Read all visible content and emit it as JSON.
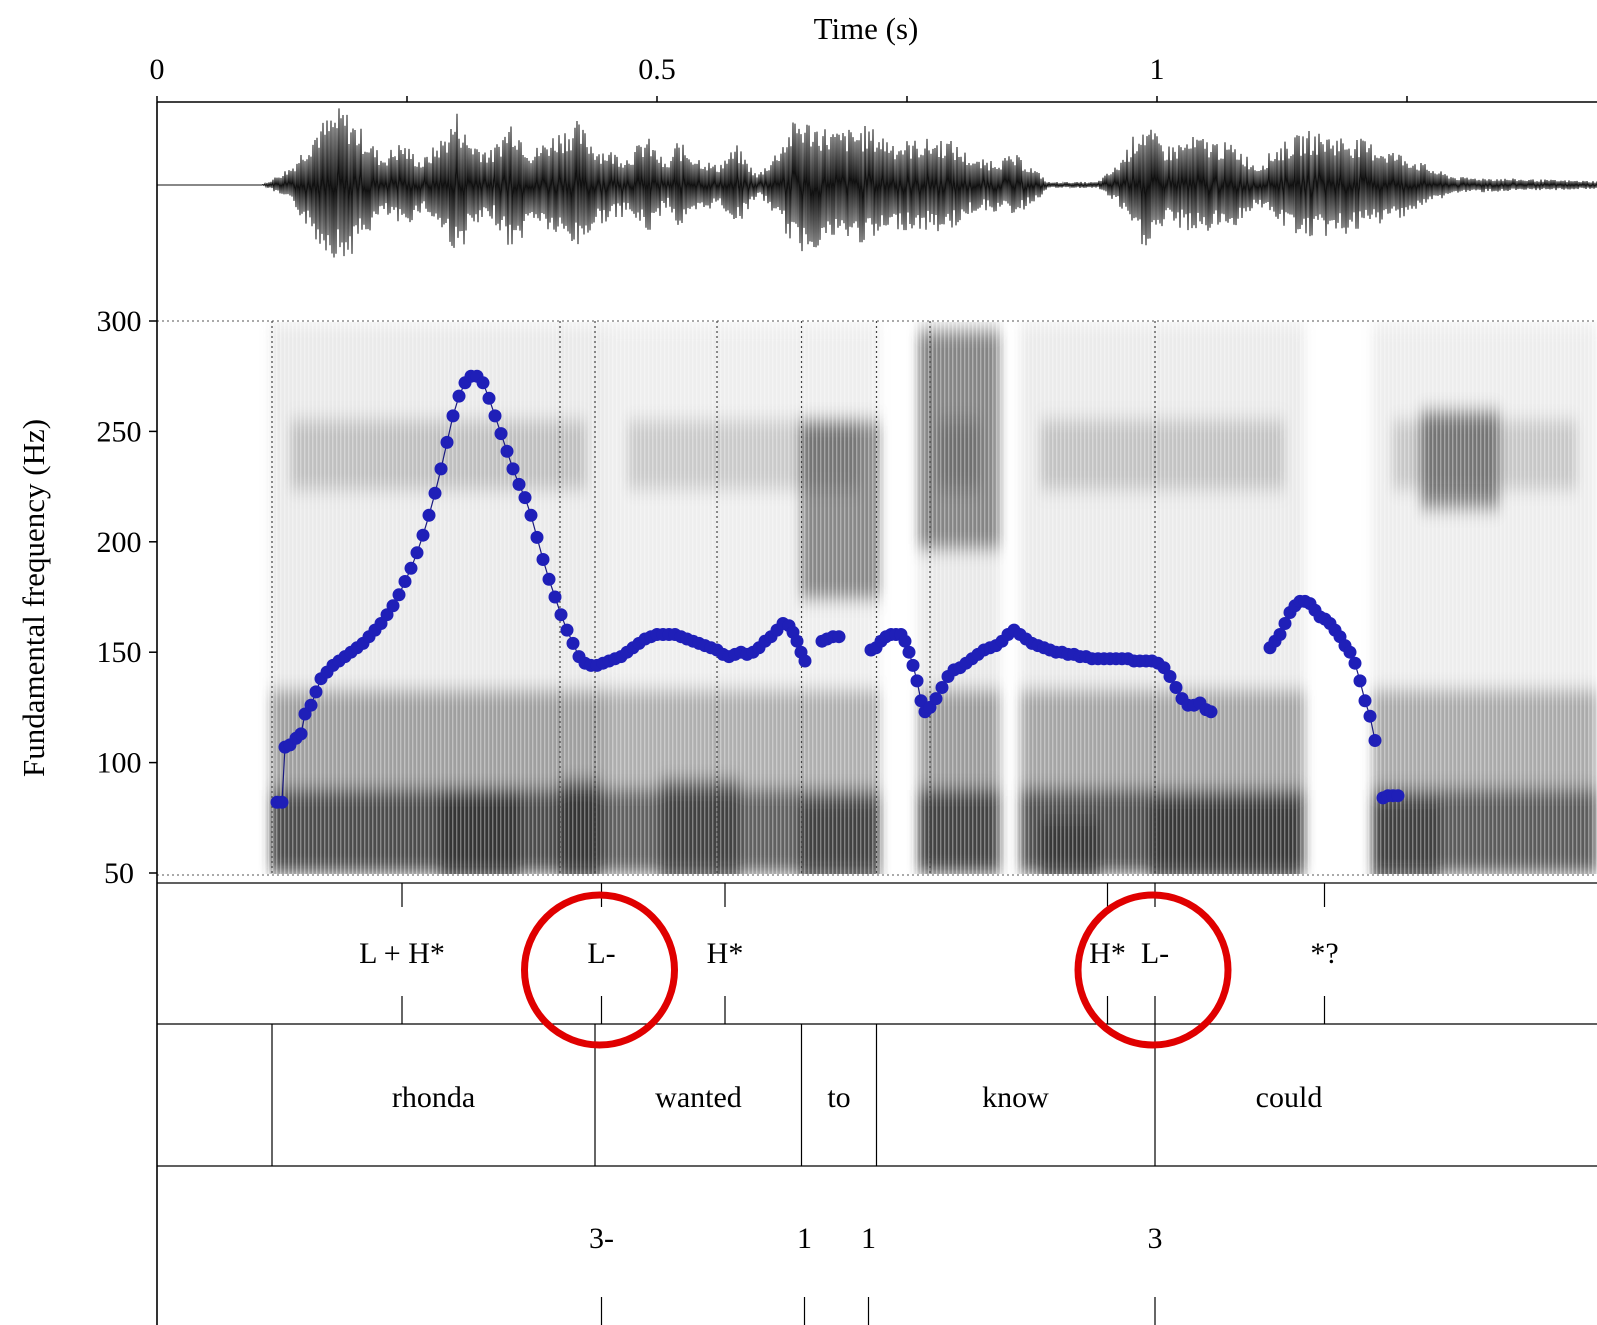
{
  "chart_data": {
    "type": "scatter",
    "title": "",
    "xlabel": "Time (s)",
    "ylabel": "Fundamental frequency (Hz)",
    "xlim": [
      0,
      1.415
    ],
    "ylim": [
      50,
      300
    ],
    "x_ticks": [
      {
        "value": 0,
        "label": "0"
      },
      {
        "value": 0.5,
        "label": "0.5"
      },
      {
        "value": 1,
        "label": "1"
      }
    ],
    "x_minor_ticks": [
      0.25,
      0.75,
      1.25
    ],
    "y_ticks": [
      {
        "value": 50,
        "label": "50"
      },
      {
        "value": 100,
        "label": "100"
      },
      {
        "value": 150,
        "label": "150"
      },
      {
        "value": 200,
        "label": "200"
      },
      {
        "value": 250,
        "label": "250"
      },
      {
        "value": 300,
        "label": "300"
      }
    ],
    "colors": {
      "pitch": "#1f1fb8",
      "annotation_circle": "#e00000",
      "spectrogram": "#3a3a3a"
    },
    "pitch_segments": [
      [
        [
          0.12,
          82
        ],
        [
          0.125,
          82
        ],
        [
          0.128,
          107
        ],
        [
          0.133,
          108
        ],
        [
          0.139,
          111
        ],
        [
          0.144,
          113
        ],
        [
          0.148,
          122
        ],
        [
          0.154,
          126
        ],
        [
          0.159,
          132
        ],
        [
          0.164,
          138
        ],
        [
          0.17,
          141
        ],
        [
          0.176,
          144
        ],
        [
          0.182,
          146
        ],
        [
          0.188,
          148
        ],
        [
          0.194,
          150
        ],
        [
          0.2,
          152
        ],
        [
          0.206,
          154
        ],
        [
          0.212,
          157
        ],
        [
          0.218,
          160
        ],
        [
          0.224,
          163
        ],
        [
          0.23,
          167
        ],
        [
          0.236,
          171
        ],
        [
          0.242,
          176
        ],
        [
          0.248,
          182
        ],
        [
          0.254,
          188
        ],
        [
          0.26,
          195
        ],
        [
          0.266,
          203
        ],
        [
          0.272,
          212
        ],
        [
          0.278,
          222
        ],
        [
          0.284,
          233
        ],
        [
          0.29,
          245
        ],
        [
          0.296,
          257
        ],
        [
          0.302,
          266
        ],
        [
          0.308,
          272
        ],
        [
          0.314,
          275
        ],
        [
          0.32,
          275
        ],
        [
          0.326,
          272
        ],
        [
          0.332,
          265
        ],
        [
          0.338,
          257
        ],
        [
          0.344,
          249
        ],
        [
          0.35,
          241
        ],
        [
          0.356,
          233
        ],
        [
          0.362,
          226
        ],
        [
          0.368,
          220
        ],
        [
          0.374,
          212
        ],
        [
          0.38,
          202
        ],
        [
          0.386,
          192
        ],
        [
          0.392,
          183
        ],
        [
          0.398,
          175
        ],
        [
          0.404,
          167
        ],
        [
          0.41,
          160
        ],
        [
          0.416,
          154
        ],
        [
          0.422,
          148
        ],
        [
          0.428,
          145
        ],
        [
          0.434,
          144
        ],
        [
          0.44,
          144
        ],
        [
          0.446,
          145
        ],
        [
          0.452,
          146
        ],
        [
          0.458,
          147
        ],
        [
          0.464,
          148
        ],
        [
          0.47,
          150
        ],
        [
          0.476,
          152
        ],
        [
          0.482,
          154
        ],
        [
          0.488,
          156
        ],
        [
          0.494,
          157
        ],
        [
          0.5,
          158
        ],
        [
          0.506,
          158
        ],
        [
          0.512,
          158
        ],
        [
          0.518,
          158
        ],
        [
          0.524,
          157
        ],
        [
          0.53,
          156
        ],
        [
          0.536,
          155
        ],
        [
          0.542,
          154
        ],
        [
          0.548,
          153
        ],
        [
          0.554,
          152
        ],
        [
          0.56,
          151
        ],
        [
          0.566,
          149
        ],
        [
          0.572,
          148
        ],
        [
          0.578,
          149
        ],
        [
          0.584,
          150
        ],
        [
          0.59,
          149
        ],
        [
          0.596,
          150
        ],
        [
          0.602,
          152
        ],
        [
          0.608,
          155
        ],
        [
          0.614,
          157
        ],
        [
          0.62,
          160
        ],
        [
          0.626,
          163
        ],
        [
          0.632,
          162
        ],
        [
          0.636,
          159
        ],
        [
          0.64,
          155
        ],
        [
          0.644,
          150
        ],
        [
          0.648,
          146
        ]
      ],
      [
        [
          0.665,
          155
        ],
        [
          0.67,
          156
        ],
        [
          0.676,
          157
        ],
        [
          0.682,
          157
        ]
      ],
      [
        [
          0.714,
          151
        ],
        [
          0.719,
          152
        ],
        [
          0.724,
          155
        ],
        [
          0.729,
          157
        ],
        [
          0.734,
          158
        ],
        [
          0.739,
          158
        ],
        [
          0.744,
          158
        ],
        [
          0.748,
          155
        ],
        [
          0.752,
          150
        ],
        [
          0.756,
          144
        ],
        [
          0.76,
          137
        ],
        [
          0.764,
          128
        ],
        [
          0.768,
          123
        ],
        [
          0.773,
          125
        ],
        [
          0.779,
          129
        ],
        [
          0.785,
          134
        ],
        [
          0.791,
          139
        ],
        [
          0.797,
          142
        ],
        [
          0.803,
          143
        ],
        [
          0.809,
          145
        ],
        [
          0.815,
          147
        ],
        [
          0.821,
          149
        ],
        [
          0.827,
          151
        ],
        [
          0.833,
          152
        ],
        [
          0.839,
          153
        ],
        [
          0.845,
          155
        ],
        [
          0.851,
          158
        ],
        [
          0.857,
          160
        ],
        [
          0.863,
          158
        ],
        [
          0.869,
          156
        ],
        [
          0.875,
          154
        ],
        [
          0.881,
          153
        ],
        [
          0.887,
          152
        ],
        [
          0.893,
          151
        ],
        [
          0.899,
          150
        ],
        [
          0.905,
          150
        ],
        [
          0.911,
          149
        ],
        [
          0.917,
          149
        ],
        [
          0.923,
          148
        ],
        [
          0.929,
          148
        ],
        [
          0.935,
          147
        ],
        [
          0.941,
          147
        ],
        [
          0.947,
          147
        ],
        [
          0.953,
          147
        ],
        [
          0.959,
          147
        ],
        [
          0.965,
          147
        ],
        [
          0.971,
          147
        ],
        [
          0.977,
          146
        ],
        [
          0.983,
          146
        ],
        [
          0.989,
          146
        ],
        [
          0.995,
          146
        ],
        [
          1.001,
          145
        ],
        [
          1.007,
          143
        ],
        [
          1.013,
          139
        ],
        [
          1.019,
          134
        ],
        [
          1.025,
          129
        ],
        [
          1.031,
          126
        ],
        [
          1.037,
          126
        ],
        [
          1.043,
          127
        ],
        [
          1.049,
          124
        ],
        [
          1.054,
          123
        ]
      ],
      [
        [
          1.113,
          152
        ],
        [
          1.118,
          155
        ],
        [
          1.123,
          158
        ],
        [
          1.128,
          163
        ],
        [
          1.133,
          168
        ],
        [
          1.138,
          171
        ],
        [
          1.143,
          173
        ],
        [
          1.148,
          173
        ],
        [
          1.153,
          172
        ],
        [
          1.158,
          169
        ],
        [
          1.163,
          166
        ],
        [
          1.168,
          165
        ],
        [
          1.173,
          163
        ],
        [
          1.178,
          160
        ],
        [
          1.183,
          157
        ],
        [
          1.188,
          153
        ],
        [
          1.193,
          150
        ],
        [
          1.198,
          145
        ],
        [
          1.203,
          137
        ],
        [
          1.208,
          128
        ],
        [
          1.213,
          121
        ],
        [
          1.218,
          110
        ]
      ],
      [
        [
          1.226,
          84
        ],
        [
          1.231,
          85
        ],
        [
          1.236,
          85
        ],
        [
          1.241,
          85
        ]
      ]
    ],
    "word_boundaries": [
      0.115,
      0.438,
      0.6445,
      0.7195,
      0.998
    ],
    "words": [
      {
        "label": "rhonda",
        "x": 0.2765
      },
      {
        "label": "wanted",
        "x": 0.5415
      },
      {
        "label": "to",
        "x": 0.682
      },
      {
        "label": "know",
        "x": 0.8585
      },
      {
        "label": "could",
        "x": 1.132
      }
    ],
    "tones": [
      {
        "label": "L + H*",
        "x": 0.245
      },
      {
        "label": "L-",
        "x": 0.4445
      },
      {
        "label": "H*",
        "x": 0.568
      },
      {
        "label": "H*",
        "x": 0.9505
      },
      {
        "label": "L-",
        "x": 0.998
      },
      {
        "label": "*?",
        "x": 1.1675
      }
    ],
    "break_indices": [
      {
        "label": "3-",
        "x": 0.4445
      },
      {
        "label": "1",
        "x": 0.6475
      },
      {
        "label": "1",
        "x": 0.7115
      },
      {
        "label": "3",
        "x": 0.998
      }
    ],
    "circled_tones": [
      1,
      4
    ]
  }
}
